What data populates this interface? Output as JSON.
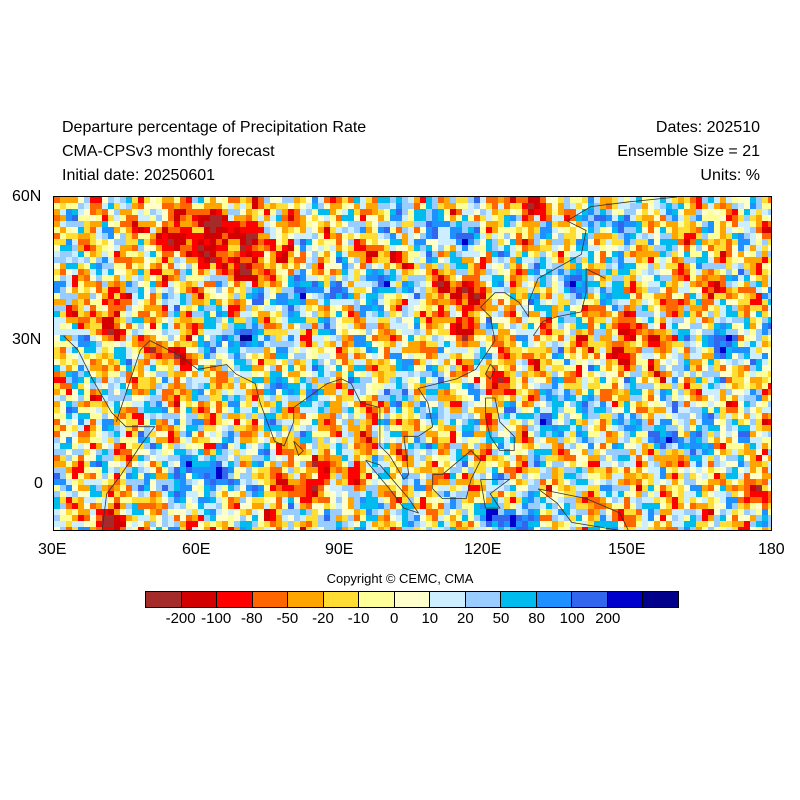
{
  "header": {
    "title": "Departure percentage of Precipitation Rate",
    "model": "CMA-CPSv3 monthly forecast",
    "initial_date": "Initial date: 20250601",
    "dates": "Dates: 202510",
    "ensemble": "Ensemble Size = 21",
    "units": "Units: %"
  },
  "map": {
    "lon_range": [
      30,
      180
    ],
    "lat_range": [
      -10,
      60
    ],
    "lon_ticks": [
      "30E",
      "60E",
      "90E",
      "120E",
      "150E",
      "180"
    ],
    "lat_ticks": [
      "60N",
      "30N",
      "0"
    ]
  },
  "copyright": "Copyright © CEMC, CMA",
  "colorbar": {
    "colors": [
      "#a52a2a",
      "#d20000",
      "#ff0000",
      "#ff6600",
      "#ffa500",
      "#ffdd33",
      "#ffff99",
      "#ffffcc",
      "#cceeff",
      "#99ccff",
      "#00bbee",
      "#1e90ff",
      "#3366ee",
      "#0000cd",
      "#00008b"
    ],
    "labels": [
      "-200",
      "-100",
      "-80",
      "-50",
      "-20",
      "-10",
      "0",
      "10",
      "20",
      "50",
      "80",
      "100",
      "200"
    ]
  }
}
